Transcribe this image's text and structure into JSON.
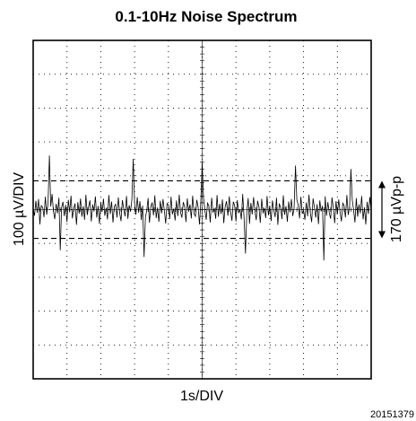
{
  "chart_data": {
    "type": "line",
    "title": "0.1-10Hz Noise Spectrum",
    "xlabel": "1s/DIV",
    "ylabel": "100 µV/DIV",
    "x_divisions": 10,
    "y_divisions": 10,
    "xlim": [
      0,
      10
    ],
    "ylim": [
      -500,
      500
    ],
    "grid": true,
    "series": [
      {
        "x_step": 0.04,
        "values": [
          2,
          -18,
          26,
          -9,
          31,
          -44,
          12,
          7,
          -22,
          38,
          -15,
          20,
          -33,
          9,
          46,
          -5,
          -28,
          17,
          -11,
          35,
          -40,
          6,
          23,
          -19,
          14,
          -37,
          29,
          -8,
          41,
          -26,
          3,
          18,
          -45,
          22,
          -12,
          33,
          -21,
          10,
          -30,
          44,
          -16,
          8,
          27,
          -35,
          15,
          -4,
          39,
          -24,
          11,
          -42,
          21,
          -7,
          32,
          -18,
          5,
          -29,
          43,
          -13,
          24,
          -38,
          9,
          16,
          -23,
          36,
          -10,
          -34,
          28,
          2,
          -20,
          40,
          -27,
          13,
          -6,
          30,
          -43,
          19,
          -15,
          37,
          -9,
          25,
          -31,
          12,
          45,
          -22,
          -3,
          34,
          -39,
          8,
          21,
          -17,
          42,
          -25,
          6,
          -36,
          26,
          -11,
          31,
          -2,
          -41,
          18,
          14,
          -28,
          38,
          -14,
          3,
          -32,
          27,
          -19,
          44,
          -8,
          -24,
          22,
          10,
          -37,
          33,
          -5,
          15,
          -26,
          41,
          -12,
          -20,
          29,
          7,
          -44,
          24,
          -16,
          36,
          -1,
          -30,
          19,
          11,
          -38,
          35,
          -9,
          4,
          -27,
          43,
          -21,
          17,
          -13,
          30,
          -40,
          8,
          25,
          -18,
          39,
          -6,
          -33,
          23,
          13,
          -35,
          28,
          -10,
          1,
          -29,
          46,
          -23,
          16,
          -7,
          34,
          -42,
          20,
          -14,
          37,
          -4,
          -31,
          26,
          9,
          -39,
          32,
          -11,
          5,
          -25,
          40,
          -17,
          12,
          -34,
          27,
          -2,
          -22,
          35,
          -45,
          18,
          6,
          -28,
          42,
          -15,
          10,
          -36,
          24,
          -8,
          31,
          -19,
          3,
          -41,
          29,
          14,
          -26,
          38,
          -12,
          -3,
          -30,
          21,
          -20,
          44,
          -9,
          -37,
          33,
          7,
          -24,
          16,
          -43,
          27,
          -5,
          11,
          -32,
          39,
          -18,
          22,
          -10,
          -27,
          36,
          4,
          -40,
          25,
          -14,
          30,
          -7,
          -35,
          19,
          12,
          -23,
          43,
          -16,
          8,
          -31,
          28,
          -1,
          -38,
          34,
          -21,
          15,
          -11,
          40,
          -29,
          6,
          -44,
          23,
          -13,
          37,
          -3,
          -26,
          20,
          9,
          -34,
          31,
          -17,
          2,
          -39,
          26,
          -8,
          45,
          -22,
          13,
          -28,
          35,
          -6,
          -33,
          18,
          -15,
          41,
          -24,
          10,
          -36,
          29,
          -2,
          -20,
          38,
          -42,
          17,
          5,
          -27,
          32,
          -12,
          24,
          -37,
          14,
          -9,
          30,
          -25,
          7,
          -43,
          36,
          -19,
          11,
          -4,
          -31,
          27,
          21,
          -38,
          33,
          -14,
          1,
          -29,
          42,
          -10,
          16,
          -35,
          23,
          -7,
          39,
          -26,
          12,
          -41,
          28,
          -16,
          6,
          -23,
          34,
          -1,
          -32,
          20,
          -18,
          44,
          -11,
          -36,
          25,
          8,
          -30,
          37,
          -13,
          3,
          -40,
          31,
          -6,
          15,
          -27,
          43,
          -21,
          18,
          -9,
          35,
          -34,
          10,
          -24,
          26,
          -3,
          -39,
          32,
          13,
          -17,
          41,
          -28,
          5,
          -33,
          22,
          -12,
          38,
          -25,
          7,
          -44,
          30,
          -8,
          17,
          -20,
          36,
          -30,
          11,
          -37,
          24,
          2,
          -15,
          40,
          -26,
          14,
          -35,
          28,
          -4,
          -42,
          33,
          -18,
          9,
          -23,
          39,
          -11,
          20,
          -31,
          27,
          -7,
          -38,
          34,
          16,
          -22,
          43,
          -29,
          4,
          -36,
          25,
          -13,
          37,
          -19,
          8,
          -45,
          31,
          -5,
          21,
          -27,
          35,
          -10,
          -33,
          19,
          -16,
          42,
          -24,
          12,
          -40,
          29,
          -2,
          -28,
          38,
          -14,
          6,
          -34,
          23,
          -8,
          33,
          -21,
          15,
          -39,
          26,
          -3
        ],
        "spikes": [
          {
            "x": 0.5,
            "y": 160
          },
          {
            "x": 0.8,
            "y": -120
          },
          {
            "x": 2.95,
            "y": 150
          },
          {
            "x": 3.3,
            "y": -140
          },
          {
            "x": 5.02,
            "y": 140
          },
          {
            "x": 6.3,
            "y": -130
          },
          {
            "x": 7.75,
            "y": 130
          },
          {
            "x": 8.6,
            "y": -150
          },
          {
            "x": 9.4,
            "y": 120
          }
        ]
      }
    ],
    "reference_lines": [
      {
        "y": 85,
        "style": "dashed"
      },
      {
        "y": -85,
        "style": "dashed"
      }
    ],
    "annotation": {
      "text": "170 µVp-p",
      "from_y": -85,
      "to_y": 85
    }
  },
  "figure_id": "20151379"
}
